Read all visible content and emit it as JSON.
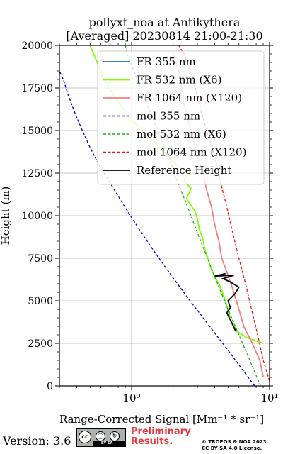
{
  "chart_data": {
    "type": "line",
    "title": "pollyxt_noa at Antikythera",
    "subtitle": "[Averaged] 20230814 21:00-21:30",
    "xlabel": "Range-Corrected Signal [Mm⁻¹ * sr⁻¹]",
    "ylabel": "Height (m)",
    "xscale": "log",
    "xlim": [
      0.3,
      10
    ],
    "ylim": [
      0,
      20000
    ],
    "x_ticks": [
      {
        "value": 1,
        "label": "10⁰"
      },
      {
        "value": 10,
        "label": "10¹"
      }
    ],
    "y_ticks": [
      0,
      2500,
      5000,
      7500,
      10000,
      12500,
      15000,
      17500,
      20000
    ],
    "grid": true,
    "legend_position": "top-right",
    "series": [
      {
        "name": "FR 355 nm",
        "style": "solid",
        "color": "#1f77b4",
        "points": []
      },
      {
        "name": "FR 532 nm (X6)",
        "style": "solid",
        "color": "#80ff00",
        "points": [
          [
            9.0,
            2500
          ],
          [
            7.0,
            2800
          ],
          [
            5.8,
            3200
          ],
          [
            5.3,
            3800
          ],
          [
            5.0,
            4400
          ],
          [
            4.8,
            5000
          ],
          [
            4.5,
            5600
          ],
          [
            4.3,
            6000
          ],
          [
            4.0,
            6400
          ],
          [
            3.8,
            6800
          ],
          [
            3.6,
            7400
          ],
          [
            3.4,
            8000
          ],
          [
            3.3,
            8600
          ],
          [
            3.1,
            9200
          ],
          [
            3.0,
            9800
          ],
          [
            2.9,
            10200
          ],
          [
            2.7,
            10600
          ],
          [
            2.5,
            11000
          ],
          [
            2.7,
            11600
          ],
          [
            2.4,
            12000
          ],
          [
            2.5,
            12500
          ],
          [
            2.1,
            13000
          ],
          [
            1.8,
            13600
          ],
          [
            1.5,
            14200
          ],
          [
            1.2,
            15000
          ],
          [
            1.0,
            15600
          ],
          [
            0.85,
            16400
          ],
          [
            0.7,
            17400
          ],
          [
            0.6,
            18400
          ],
          [
            0.55,
            19200
          ],
          [
            0.5,
            20000
          ]
        ]
      },
      {
        "name": "FR 1064 nm (X120)",
        "style": "solid",
        "color": "#f08080",
        "points": [
          [
            9.0,
            500
          ],
          [
            8.5,
            1500
          ],
          [
            7.5,
            2500
          ],
          [
            6.5,
            3500
          ],
          [
            6.0,
            4500
          ],
          [
            5.5,
            5500
          ],
          [
            5.0,
            6500
          ],
          [
            4.5,
            7500
          ],
          [
            4.3,
            8500
          ],
          [
            4.0,
            9500
          ],
          [
            3.8,
            10500
          ],
          [
            3.5,
            11500
          ],
          [
            3.3,
            12500
          ],
          [
            3.0,
            13500
          ],
          [
            2.8,
            14500
          ],
          [
            2.6,
            15500
          ],
          [
            2.4,
            16500
          ],
          [
            2.3,
            17500
          ],
          [
            2.2,
            18500
          ],
          [
            2.0,
            19500
          ]
        ]
      },
      {
        "name": "mol 355 nm",
        "style": "dashed",
        "color": "#0000dd",
        "points": [
          [
            7.8,
            0
          ],
          [
            6.3,
            1000
          ],
          [
            5.1,
            2000
          ],
          [
            4.1,
            3000
          ],
          [
            3.3,
            4000
          ],
          [
            2.65,
            5000
          ],
          [
            2.15,
            6000
          ],
          [
            1.75,
            7000
          ],
          [
            1.43,
            8000
          ],
          [
            1.18,
            9000
          ],
          [
            0.98,
            10000
          ],
          [
            0.82,
            11000
          ],
          [
            0.69,
            12000
          ],
          [
            0.58,
            13000
          ],
          [
            0.5,
            14000
          ],
          [
            0.44,
            15000
          ],
          [
            0.39,
            16000
          ],
          [
            0.35,
            17000
          ],
          [
            0.32,
            18000
          ],
          [
            0.3,
            18500
          ]
        ]
      },
      {
        "name": "mol 532 nm (X6)",
        "style": "dashed",
        "color": "#22aa22",
        "points": [
          [
            8.6,
            0
          ],
          [
            7.2,
            1500
          ],
          [
            6.0,
            3000
          ],
          [
            5.0,
            4500
          ],
          [
            4.2,
            6000
          ],
          [
            3.55,
            7500
          ],
          [
            3.0,
            9000
          ],
          [
            2.55,
            10500
          ],
          [
            2.15,
            12000
          ],
          [
            1.85,
            13500
          ],
          [
            1.55,
            15000
          ],
          [
            1.3,
            16500
          ],
          [
            1.1,
            18000
          ],
          [
            0.93,
            19500
          ],
          [
            0.9,
            20000
          ]
        ]
      },
      {
        "name": "mol 1064 nm (X120)",
        "style": "dashed",
        "color": "#ee1111",
        "points": [
          [
            10.0,
            300
          ],
          [
            9.0,
            1500
          ],
          [
            8.2,
            3000
          ],
          [
            7.4,
            4500
          ],
          [
            6.7,
            6000
          ],
          [
            6.0,
            7500
          ],
          [
            5.4,
            9000
          ],
          [
            4.9,
            10500
          ],
          [
            4.4,
            12000
          ],
          [
            4.0,
            13500
          ],
          [
            3.5,
            15000
          ],
          [
            3.1,
            16500
          ],
          [
            2.8,
            18000
          ],
          [
            2.4,
            19500
          ],
          [
            2.2,
            20000
          ]
        ]
      },
      {
        "name": "Reference Height",
        "style": "solid",
        "color": "#000000",
        "points": [
          [
            5.7,
            3200
          ],
          [
            5.4,
            3600
          ],
          [
            5.1,
            4000
          ],
          [
            4.9,
            4300
          ],
          [
            5.2,
            4600
          ],
          [
            5.0,
            5000
          ],
          [
            5.6,
            5400
          ],
          [
            6.0,
            5800
          ],
          [
            5.2,
            6100
          ],
          [
            4.6,
            6300
          ],
          [
            5.5,
            6500
          ],
          [
            4.0,
            6450
          ],
          [
            4.8,
            6600
          ]
        ]
      }
    ]
  },
  "footer": {
    "version": "Version: 3.6",
    "cc_label": "cc",
    "cc_sub": "BY SA",
    "preliminary_line1": "Preliminary",
    "preliminary_line2": "Results.",
    "copyright_line1": "© TROPOS & NOA 2023.",
    "copyright_line2": "CC BY SA 4.0 License."
  }
}
